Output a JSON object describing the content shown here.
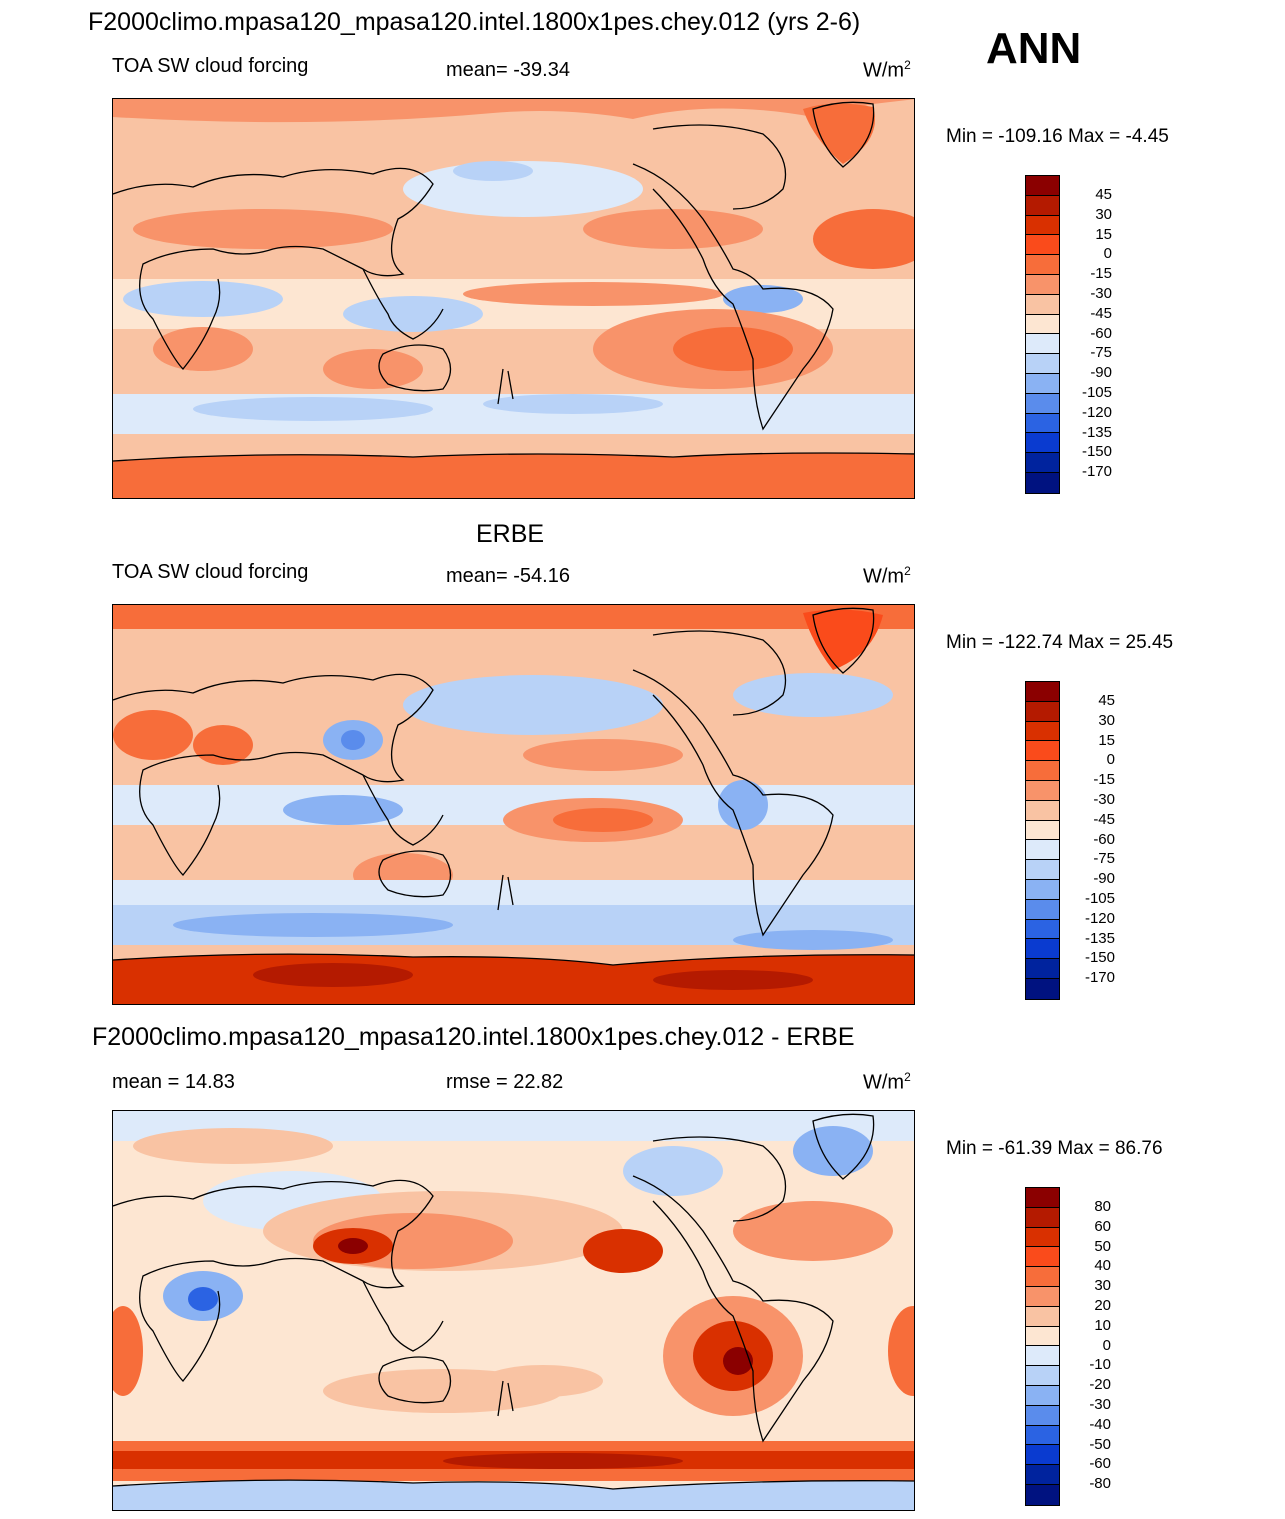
{
  "header": {
    "run_title": "F2000climo.mpasa120_mpasa120.intel.1800x1pes.chey.012 (yrs 2-6)",
    "season": "ANN"
  },
  "panels": [
    {
      "id": "model",
      "title": "",
      "left_label": "TOA SW cloud forcing",
      "center_label": "mean= -39.34",
      "units": "W/m",
      "units_sup": "2",
      "minmax": "Min = -109.16 Max =  -4.45",
      "colorbar": {
        "labels": [
          "45",
          "30",
          "15",
          "0",
          "-15",
          "-30",
          "-45",
          "-60",
          "-75",
          "-90",
          "-105",
          "-120",
          "-135",
          "-150",
          "-170"
        ],
        "colors": [
          "#8b0000",
          "#b41a00",
          "#d93000",
          "#fa4b1b",
          "#f76d3a",
          "#f8936a",
          "#f9c3a3",
          "#fde6d2",
          "#ddeafa",
          "#b8d2f7",
          "#8ab2f3",
          "#5a8cec",
          "#2b63e3",
          "#0a3bd0",
          "#00239e",
          "#001280"
        ]
      }
    },
    {
      "id": "obs",
      "title": "ERBE",
      "left_label": "TOA SW cloud forcing",
      "center_label": "mean= -54.16",
      "units": "W/m",
      "units_sup": "2",
      "minmax": "Min = -122.74 Max =  25.45",
      "colorbar": {
        "labels": [
          "45",
          "30",
          "15",
          "0",
          "-15",
          "-30",
          "-45",
          "-60",
          "-75",
          "-90",
          "-105",
          "-120",
          "-135",
          "-150",
          "-170"
        ],
        "colors": [
          "#8b0000",
          "#b41a00",
          "#d93000",
          "#fa4b1b",
          "#f76d3a",
          "#f8936a",
          "#f9c3a3",
          "#fde6d2",
          "#ddeafa",
          "#b8d2f7",
          "#8ab2f3",
          "#5a8cec",
          "#2b63e3",
          "#0a3bd0",
          "#00239e",
          "#001280"
        ]
      }
    },
    {
      "id": "diff",
      "title": "F2000climo.mpasa120_mpasa120.intel.1800x1pes.chey.012 - ERBE",
      "left_label": "mean =  14.83",
      "center_label": "rmse =  22.82",
      "units": "W/m",
      "units_sup": "2",
      "minmax": "Min = -61.39 Max =  86.76",
      "colorbar": {
        "labels": [
          "80",
          "60",
          "50",
          "40",
          "30",
          "20",
          "10",
          "0",
          "-10",
          "-20",
          "-30",
          "-40",
          "-50",
          "-60",
          "-80"
        ],
        "colors": [
          "#8b0000",
          "#b41a00",
          "#d93000",
          "#fa4b1b",
          "#f76d3a",
          "#f8936a",
          "#f9c3a3",
          "#fde6d2",
          "#ddeafa",
          "#b8d2f7",
          "#8ab2f3",
          "#5a8cec",
          "#2b63e3",
          "#0a3bd0",
          "#00239e",
          "#001280"
        ]
      }
    }
  ]
}
